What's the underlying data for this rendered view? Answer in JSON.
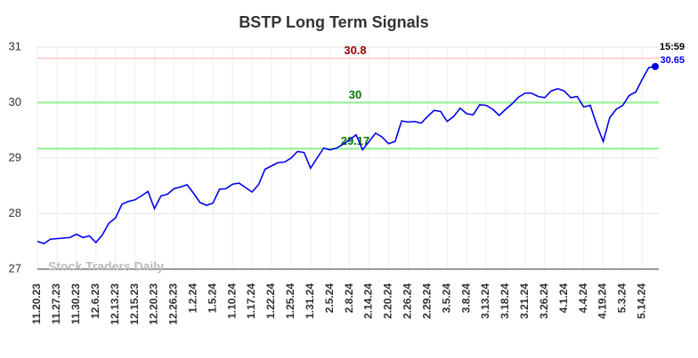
{
  "chart_data": {
    "type": "line",
    "title": "BSTP Long Term Signals",
    "categories": [
      "11.20.23",
      null,
      null,
      "11.27.23",
      null,
      null,
      "11.30.23",
      null,
      null,
      "12.6.23",
      null,
      null,
      "12.13.23",
      null,
      null,
      "12.15.23",
      null,
      null,
      "12.20.23",
      null,
      null,
      "12.26.23",
      null,
      null,
      "1.2.24",
      null,
      null,
      "1.5.24",
      null,
      null,
      "1.10.24",
      null,
      null,
      "1.17.24",
      null,
      null,
      "1.22.24",
      null,
      null,
      "1.25.24",
      null,
      null,
      "1.31.24",
      null,
      null,
      "2.5.24",
      null,
      null,
      "2.8.24",
      null,
      null,
      "2.14.24",
      null,
      null,
      "2.20.24",
      null,
      null,
      "2.26.24",
      null,
      null,
      "2.29.24",
      null,
      null,
      "3.5.24",
      null,
      null,
      "3.8.24",
      null,
      null,
      "3.13.24",
      null,
      null,
      "3.18.24",
      null,
      null,
      "3.21.24",
      null,
      null,
      "3.26.24",
      null,
      null,
      "4.1.24",
      null,
      null,
      "4.4.24",
      null,
      null,
      "4.19.24",
      null,
      null,
      "5.3.24",
      null,
      null,
      "5.14.24",
      null,
      null
    ],
    "series": [
      {
        "name": "BSTP",
        "color": "#0000ee",
        "values": [
          27.5,
          27.46,
          27.54,
          27.55,
          27.56,
          27.57,
          27.63,
          27.57,
          27.6,
          27.48,
          27.62,
          27.83,
          27.92,
          28.17,
          28.22,
          28.25,
          28.32,
          28.4,
          28.09,
          28.32,
          28.35,
          28.45,
          28.48,
          28.52,
          28.37,
          28.2,
          28.15,
          28.19,
          28.44,
          28.45,
          28.53,
          28.55,
          28.47,
          28.39,
          28.52,
          28.8,
          28.86,
          28.92,
          28.93,
          29.0,
          29.12,
          29.1,
          28.82,
          29.0,
          29.18,
          29.15,
          29.18,
          29.25,
          29.33,
          29.42,
          29.15,
          29.3,
          29.45,
          29.38,
          29.26,
          29.3,
          29.67,
          29.65,
          29.66,
          29.63,
          29.75,
          29.86,
          29.84,
          29.66,
          29.75,
          29.9,
          29.8,
          29.78,
          29.96,
          29.95,
          29.88,
          29.77,
          29.88,
          29.98,
          30.1,
          30.17,
          30.17,
          30.11,
          30.09,
          30.21,
          30.25,
          30.21,
          30.09,
          30.11,
          29.92,
          29.95,
          29.6,
          29.3,
          29.73,
          29.88,
          29.95,
          30.13,
          30.19,
          30.42,
          30.63,
          30.65
        ]
      }
    ],
    "reference_lines": [
      {
        "value": 30.8,
        "line_color": "#ffc8c8",
        "text_color": "#990000"
      },
      {
        "value": 30,
        "line_color": "#90ee90",
        "text_color": "#007700"
      },
      {
        "value": 29.17,
        "line_color": "#90ee90",
        "text_color": "#007700"
      }
    ],
    "last_time": "15:59",
    "watermark": "Stock Traders Daily",
    "ylim": [
      27,
      31
    ],
    "yticks": [
      27,
      28,
      29,
      30,
      31
    ],
    "grid": true
  }
}
